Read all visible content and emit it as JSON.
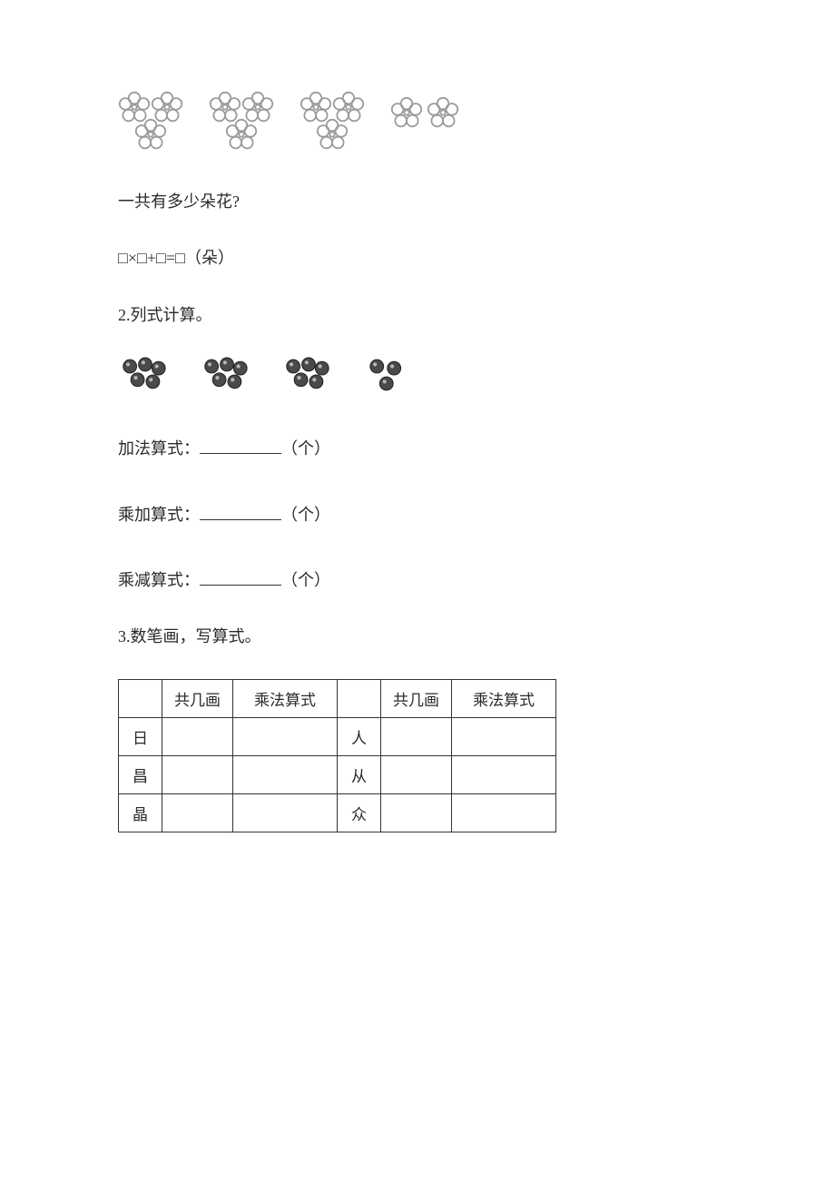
{
  "q1": {
    "question": "一共有多少朵花?",
    "equation": "□×□+□=□（朵）",
    "flowers": {
      "triplet_groups": 3,
      "pair_groups": 1,
      "flower_color": "#b9b9b9",
      "flower_stroke": "#9a9a9a"
    }
  },
  "q2": {
    "heading": "2.列式计算。",
    "clusters": {
      "group_counts": [
        5,
        5,
        5,
        3
      ],
      "ball_color": "#4a4a4a"
    },
    "lines": [
      {
        "label": "加法算式：",
        "unit": "（个）"
      },
      {
        "label": "乘加算式：",
        "unit": "（个）"
      },
      {
        "label": "乘减算式：",
        "unit": "（个）"
      }
    ]
  },
  "q3": {
    "heading": "3.数笔画，写算式。",
    "table": {
      "headers": [
        "",
        "共几画",
        "乘法算式",
        "",
        "共几画",
        "乘法算式"
      ],
      "rows": [
        [
          "日",
          "",
          "",
          "人",
          "",
          ""
        ],
        [
          "昌",
          "",
          "",
          "从",
          "",
          ""
        ],
        [
          "晶",
          "",
          "",
          "众",
          "",
          ""
        ]
      ],
      "border_color": "#333333",
      "font_size": 17
    }
  },
  "colors": {
    "text": "#2a2a2a",
    "background": "#ffffff"
  }
}
